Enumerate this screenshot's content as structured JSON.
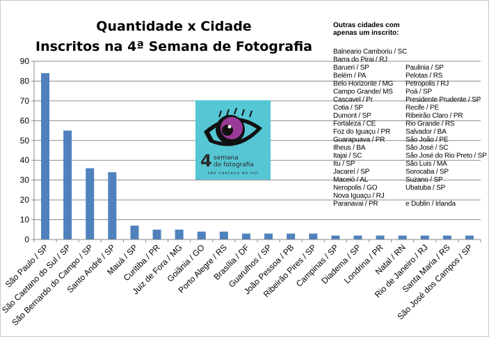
{
  "chart_data": {
    "type": "bar",
    "title_lines": [
      "Quantidade x Cidade",
      "Inscritos na 4ª Semana de Fotografia"
    ],
    "xlabel": "",
    "ylabel": "",
    "ylim": [
      0,
      90
    ],
    "yticks": [
      0,
      10,
      20,
      30,
      40,
      50,
      60,
      70,
      80,
      90
    ],
    "grid": true,
    "bar_color": "#4F81BD",
    "categories": [
      "São Paulo / SP",
      "São Caetano do Sul / SP",
      "São Bernardo do Campo / SP",
      "Santo André / SP",
      "Mauá / SP",
      "Curitiba / PR",
      "Juiz de Fora / MG",
      "Goiânia / GO",
      "Porto Alegre / RS",
      "Brasília / DF",
      "Guarulhos / SP",
      "João Pessoa / PB",
      "Ribeirão Pires / SP",
      "Campinas / SP",
      "Diadema / SP",
      "Londrina / PR",
      "Natal / RN",
      "Rio de Janeiro / RJ",
      "Santa Maria / RS",
      "São José dos Campos / SP"
    ],
    "values": [
      84,
      55,
      36,
      34,
      7,
      5,
      5,
      4,
      4,
      3,
      3,
      3,
      3,
      2,
      2,
      2,
      2,
      2,
      2,
      2
    ]
  },
  "note": {
    "heading_lines": [
      "Outras cidades com",
      "apenas um inscrito:"
    ],
    "left_column": [
      "Balneario Camboriu / SC",
      "Barra do Pirai / RJ",
      "Barueri / SP",
      "Belém / PA",
      "Belo Horizonte / MG",
      "Campo Grande/ MS",
      "Cascavel / Pr",
      "Cotia / SP",
      "Dumont / SP",
      "Fortaleza / CE",
      "Foz do Iguaçu / PR",
      "Guarapuava / PR",
      "Ilheus / BA",
      "Itajai / SC",
      "Itu / SP",
      "Jacareí / SP",
      "Maceió / AL",
      "Neropolis / GO",
      "Nova Iguaçu / RJ",
      "Paranavai / PR"
    ],
    "right_column": [
      "",
      "",
      "Paulinia / SP",
      "Pelotas / RS",
      "Petropolis / RJ",
      "Poá / SP",
      "Presidente Prudente / SP",
      "Recife / PE",
      "Ribeirão Claro / PR",
      "Rio Grande / RS",
      "Salvador / BA",
      "São João / PE",
      "São José / SC",
      "São José do Rio Preto / SP",
      "São Luis / MA",
      "Sorocaba / SP",
      "Suzano / SP",
      "Ubatuba / SP",
      "",
      "e Dublin / Irlanda"
    ]
  },
  "logo": {
    "number": "4",
    "line1": "semana",
    "line2": "de fotografia",
    "line3": "são caetano do sul",
    "bg_color": "#55C6D3",
    "iris_color": "#9B3A96"
  }
}
